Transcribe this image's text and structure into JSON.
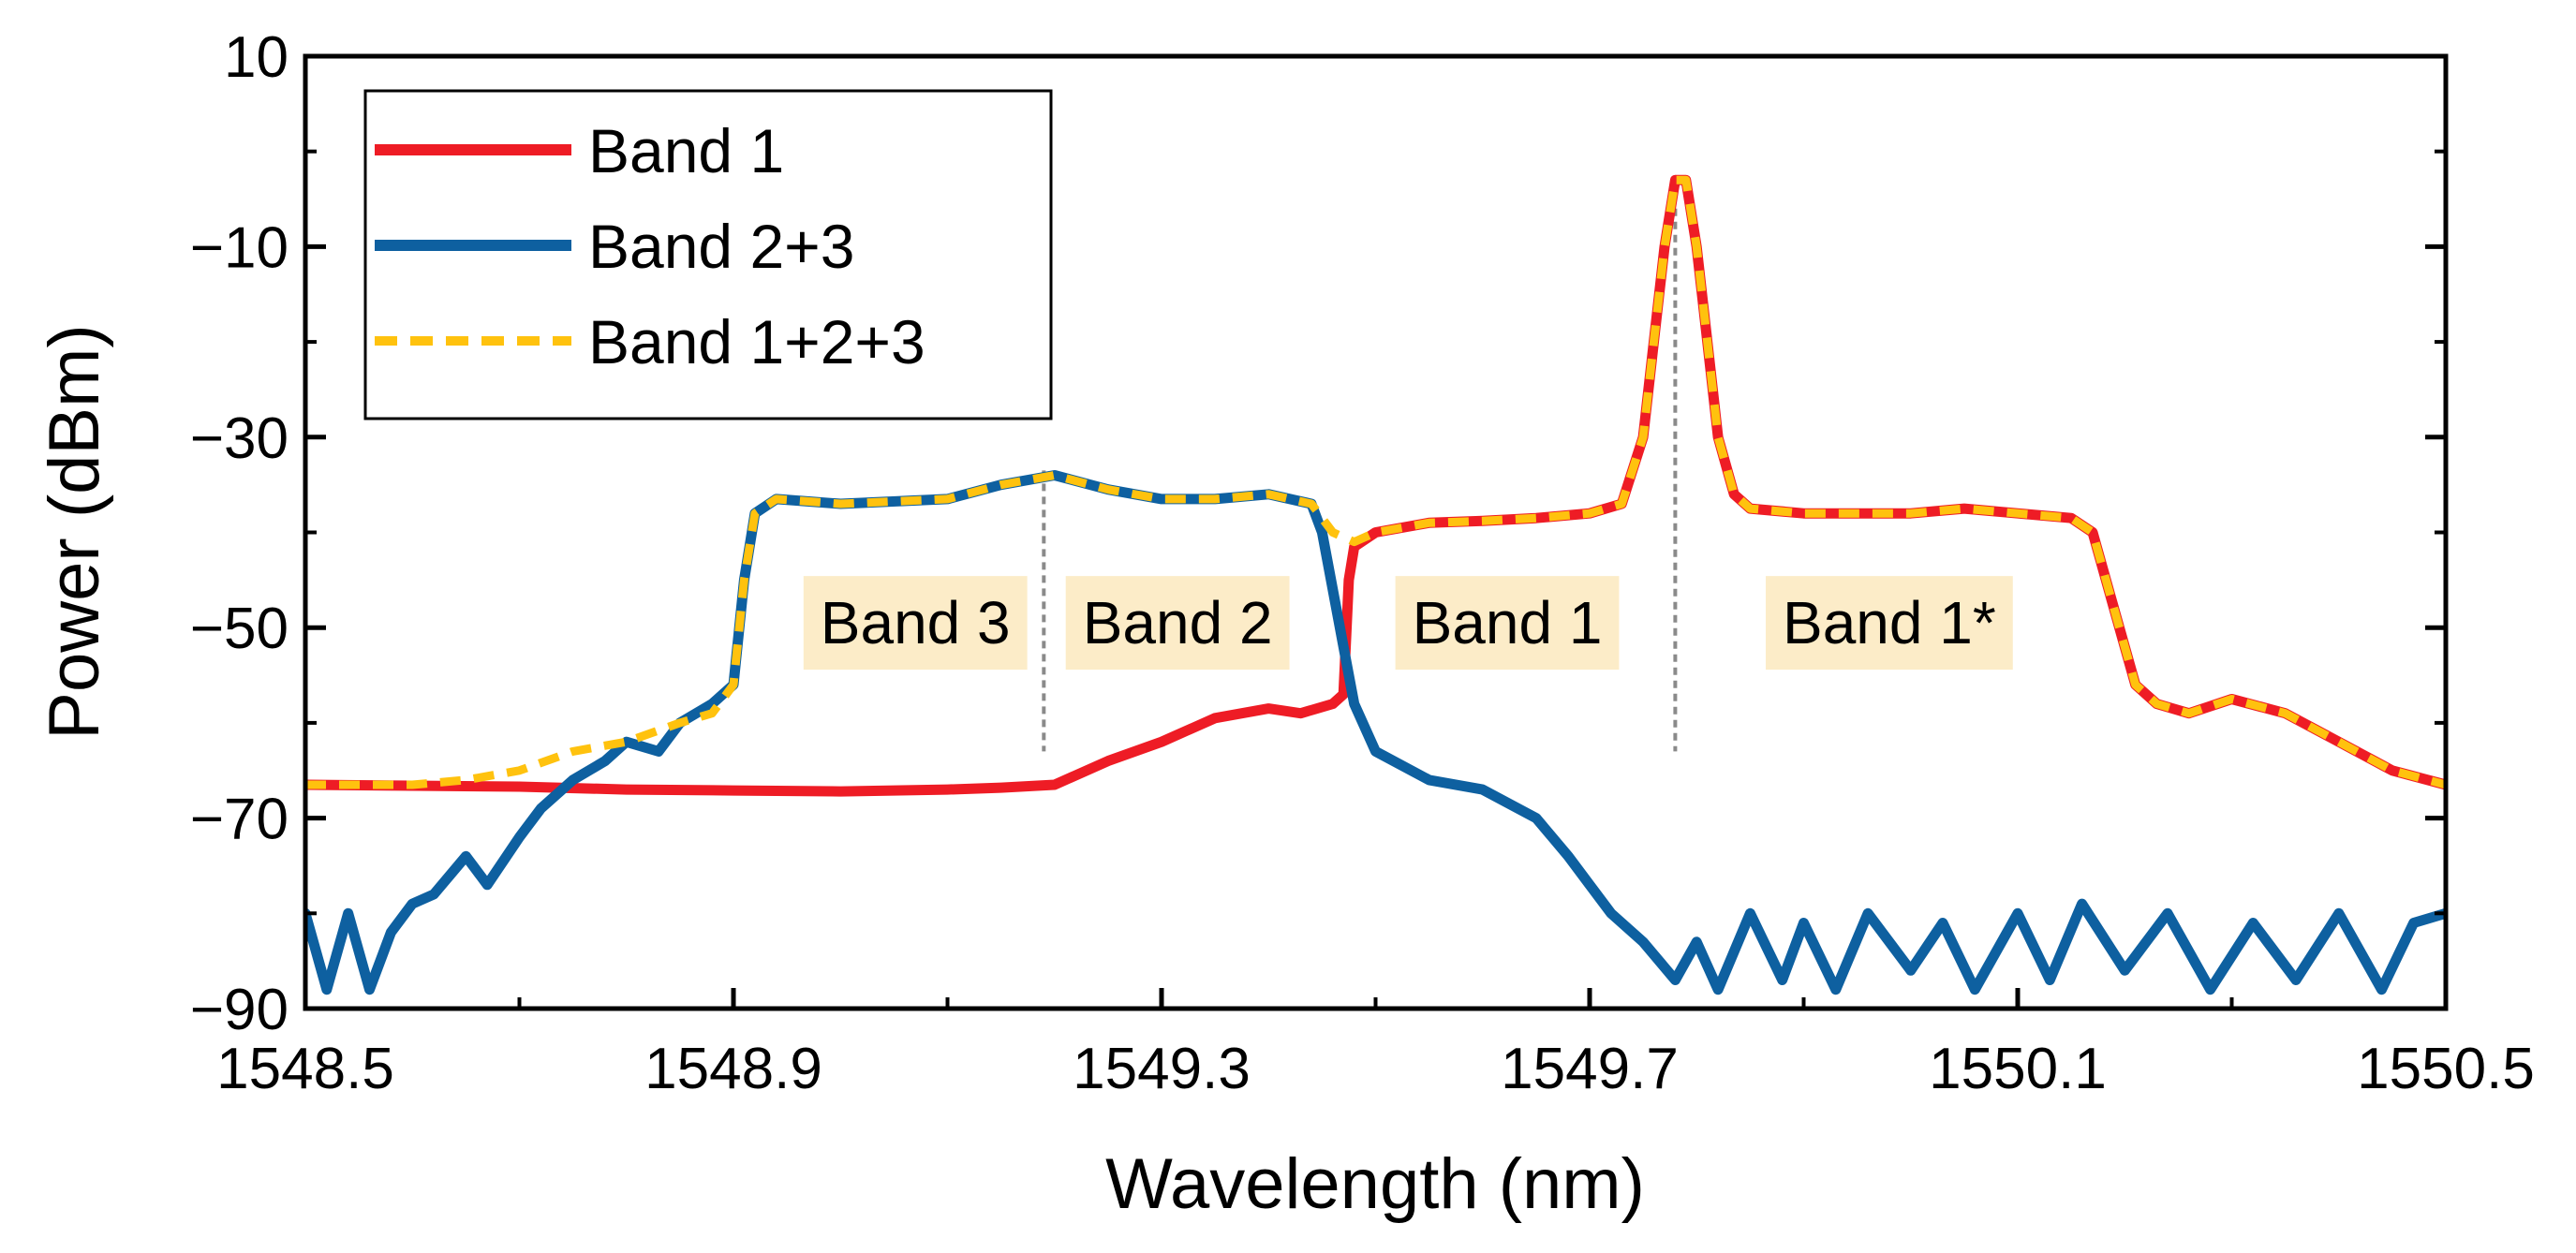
{
  "chart_data": {
    "type": "line",
    "title": "",
    "xlabel": "Wavelength (nm)",
    "ylabel": "Power (dBm)",
    "xlim": [
      1548.5,
      1550.5
    ],
    "ylim": [
      -90,
      10
    ],
    "x_ticks": [
      1548.5,
      1548.9,
      1549.3,
      1549.7,
      1550.1,
      1550.5
    ],
    "x_tick_labels": [
      "1548.5",
      "1548.9",
      "1549.3",
      "1549.7",
      "1550.1",
      "1550.5"
    ],
    "y_ticks": [
      10,
      -10,
      -30,
      -50,
      -70,
      -90
    ],
    "y_tick_labels": [
      "10",
      "−10",
      "−30",
      "−50",
      "−70",
      "−90"
    ],
    "grid": false,
    "legend_position": "top-left",
    "series": [
      {
        "name": "Band 1",
        "color": "#ee1c25",
        "style": "solid",
        "points": [
          [
            1548.5,
            -66.5
          ],
          [
            1548.6,
            -66.6
          ],
          [
            1548.7,
            -66.7
          ],
          [
            1548.8,
            -67
          ],
          [
            1548.9,
            -67.1
          ],
          [
            1549.0,
            -67.2
          ],
          [
            1549.1,
            -67.0
          ],
          [
            1549.15,
            -66.8
          ],
          [
            1549.2,
            -66.5
          ],
          [
            1549.25,
            -64
          ],
          [
            1549.3,
            -62
          ],
          [
            1549.35,
            -59.5
          ],
          [
            1549.4,
            -58.5
          ],
          [
            1549.43,
            -59
          ],
          [
            1549.46,
            -58
          ],
          [
            1549.47,
            -57
          ],
          [
            1549.475,
            -45
          ],
          [
            1549.48,
            -41.5
          ],
          [
            1549.5,
            -40
          ],
          [
            1549.55,
            -39
          ],
          [
            1549.6,
            -38.8
          ],
          [
            1549.65,
            -38.5
          ],
          [
            1549.7,
            -38
          ],
          [
            1549.73,
            -37
          ],
          [
            1549.75,
            -30
          ],
          [
            1549.76,
            -20
          ],
          [
            1549.77,
            -10
          ],
          [
            1549.78,
            -3
          ],
          [
            1549.79,
            -3
          ],
          [
            1549.8,
            -10
          ],
          [
            1549.81,
            -20
          ],
          [
            1549.82,
            -30
          ],
          [
            1549.835,
            -36
          ],
          [
            1549.85,
            -37.5
          ],
          [
            1549.9,
            -38
          ],
          [
            1550.0,
            -38
          ],
          [
            1550.05,
            -37.5
          ],
          [
            1550.1,
            -38
          ],
          [
            1550.15,
            -38.5
          ],
          [
            1550.17,
            -40
          ],
          [
            1550.19,
            -48
          ],
          [
            1550.21,
            -56
          ],
          [
            1550.23,
            -58
          ],
          [
            1550.26,
            -59
          ],
          [
            1550.3,
            -57.5
          ],
          [
            1550.35,
            -59
          ],
          [
            1550.4,
            -62
          ],
          [
            1550.45,
            -65
          ],
          [
            1550.5,
            -66.5
          ]
        ]
      },
      {
        "name": "Band 2+3",
        "color": "#0e60a0",
        "style": "solid",
        "points": [
          [
            1548.5,
            -80
          ],
          [
            1548.52,
            -88
          ],
          [
            1548.54,
            -80
          ],
          [
            1548.56,
            -88
          ],
          [
            1548.58,
            -82
          ],
          [
            1548.6,
            -79
          ],
          [
            1548.62,
            -78
          ],
          [
            1548.65,
            -74
          ],
          [
            1548.67,
            -77
          ],
          [
            1548.7,
            -72
          ],
          [
            1548.72,
            -69
          ],
          [
            1548.75,
            -66
          ],
          [
            1548.78,
            -64
          ],
          [
            1548.8,
            -62
          ],
          [
            1548.83,
            -63
          ],
          [
            1548.85,
            -60
          ],
          [
            1548.88,
            -58
          ],
          [
            1548.9,
            -56
          ],
          [
            1548.91,
            -45
          ],
          [
            1548.92,
            -38
          ],
          [
            1548.94,
            -36.5
          ],
          [
            1549.0,
            -37
          ],
          [
            1549.1,
            -36.5
          ],
          [
            1549.15,
            -35
          ],
          [
            1549.2,
            -34
          ],
          [
            1549.25,
            -35.5
          ],
          [
            1549.3,
            -36.5
          ],
          [
            1549.35,
            -36.5
          ],
          [
            1549.4,
            -36
          ],
          [
            1549.44,
            -37
          ],
          [
            1549.45,
            -40
          ],
          [
            1549.46,
            -46
          ],
          [
            1549.47,
            -52
          ],
          [
            1549.48,
            -58
          ],
          [
            1549.5,
            -63
          ],
          [
            1549.55,
            -66
          ],
          [
            1549.6,
            -67
          ],
          [
            1549.65,
            -70
          ],
          [
            1549.68,
            -74
          ],
          [
            1549.7,
            -77
          ],
          [
            1549.72,
            -80
          ],
          [
            1549.75,
            -83
          ],
          [
            1549.78,
            -87
          ],
          [
            1549.8,
            -83
          ],
          [
            1549.82,
            -88
          ],
          [
            1549.85,
            -80
          ],
          [
            1549.88,
            -87
          ],
          [
            1549.9,
            -81
          ],
          [
            1549.93,
            -88
          ],
          [
            1549.96,
            -80
          ],
          [
            1550.0,
            -86
          ],
          [
            1550.03,
            -81
          ],
          [
            1550.06,
            -88
          ],
          [
            1550.1,
            -80
          ],
          [
            1550.13,
            -87
          ],
          [
            1550.16,
            -79
          ],
          [
            1550.2,
            -86
          ],
          [
            1550.24,
            -80
          ],
          [
            1550.28,
            -88
          ],
          [
            1550.32,
            -81
          ],
          [
            1550.36,
            -87
          ],
          [
            1550.4,
            -80
          ],
          [
            1550.44,
            -88
          ],
          [
            1550.47,
            -81
          ],
          [
            1550.5,
            -80
          ]
        ]
      },
      {
        "name": "Band 1+2+3",
        "color": "#ffc20e",
        "style": "dashed",
        "points": [
          [
            1548.5,
            -66.5
          ],
          [
            1548.6,
            -66.5
          ],
          [
            1548.65,
            -66
          ],
          [
            1548.7,
            -65
          ],
          [
            1548.75,
            -63
          ],
          [
            1548.8,
            -62
          ],
          [
            1548.85,
            -60
          ],
          [
            1548.88,
            -59
          ],
          [
            1548.9,
            -56
          ],
          [
            1548.91,
            -45
          ],
          [
            1548.92,
            -38
          ],
          [
            1548.94,
            -36.5
          ],
          [
            1549.0,
            -37
          ],
          [
            1549.1,
            -36.5
          ],
          [
            1549.15,
            -35
          ],
          [
            1549.2,
            -34
          ],
          [
            1549.25,
            -35.5
          ],
          [
            1549.3,
            -36.5
          ],
          [
            1549.35,
            -36.5
          ],
          [
            1549.4,
            -36
          ],
          [
            1549.44,
            -37
          ],
          [
            1549.46,
            -40
          ],
          [
            1549.48,
            -41
          ],
          [
            1549.5,
            -40
          ],
          [
            1549.55,
            -39
          ],
          [
            1549.6,
            -38.8
          ],
          [
            1549.65,
            -38.5
          ],
          [
            1549.7,
            -38
          ],
          [
            1549.73,
            -37
          ],
          [
            1549.75,
            -30
          ],
          [
            1549.76,
            -20
          ],
          [
            1549.77,
            -10
          ],
          [
            1549.78,
            -3
          ],
          [
            1549.79,
            -3
          ],
          [
            1549.8,
            -10
          ],
          [
            1549.81,
            -20
          ],
          [
            1549.82,
            -30
          ],
          [
            1549.835,
            -36
          ],
          [
            1549.85,
            -37.5
          ],
          [
            1549.9,
            -38
          ],
          [
            1550.0,
            -38
          ],
          [
            1550.05,
            -37.5
          ],
          [
            1550.1,
            -38
          ],
          [
            1550.15,
            -38.5
          ],
          [
            1550.17,
            -40
          ],
          [
            1550.19,
            -48
          ],
          [
            1550.21,
            -56
          ],
          [
            1550.23,
            -58
          ],
          [
            1550.26,
            -59
          ],
          [
            1550.3,
            -57.5
          ],
          [
            1550.35,
            -59
          ],
          [
            1550.4,
            -62
          ],
          [
            1550.45,
            -65
          ],
          [
            1550.5,
            -66.5
          ]
        ]
      }
    ],
    "band_labels": [
      {
        "text": "Band 3",
        "x": 1549.07,
        "y": -49.5
      },
      {
        "text": "Band 2",
        "x": 1549.315,
        "y": -49.5
      },
      {
        "text": "Band 1",
        "x": 1549.623,
        "y": -49.5
      },
      {
        "text": "Band 1*",
        "x": 1549.98,
        "y": -49.5
      }
    ],
    "divider_lines": [
      {
        "x": 1549.19,
        "y_top": -33.5,
        "y_bottom": -63
      },
      {
        "x": 1549.78,
        "y_top": -6,
        "y_bottom": -63
      }
    ]
  }
}
